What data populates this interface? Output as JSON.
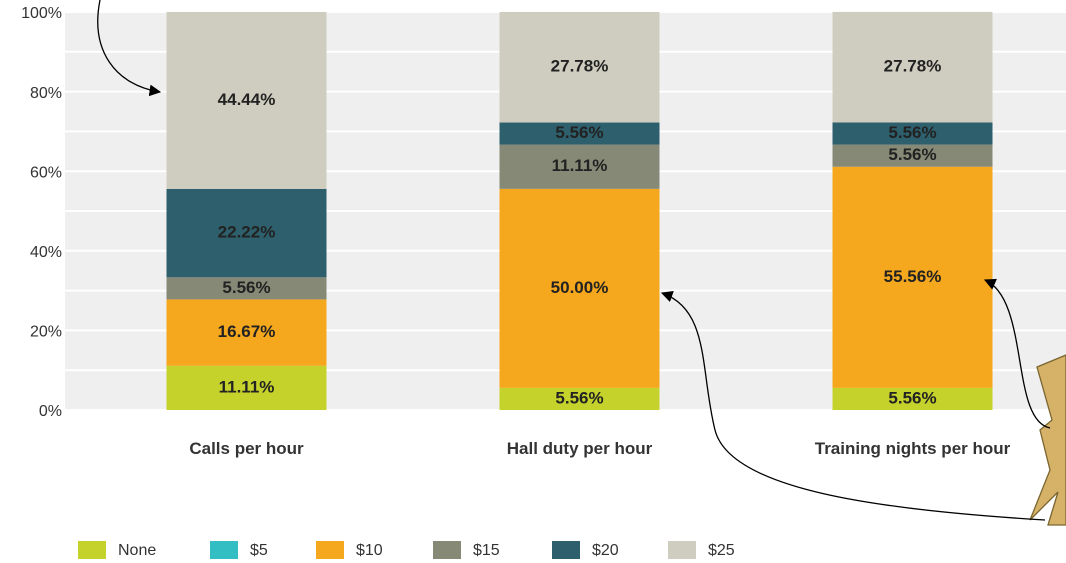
{
  "chart_data": {
    "type": "stacked_bar",
    "categories": [
      "Calls per hour",
      "Hall duty per hour",
      "Training nights per hour"
    ],
    "series": [
      {
        "name": "None",
        "color": "#c5d22c",
        "values": [
          11.11,
          5.56,
          5.56
        ],
        "value_labels": [
          "11.11%",
          "5.56%",
          "5.56%"
        ]
      },
      {
        "name": "$5",
        "color": "#33bec3",
        "values": [
          0,
          0,
          0
        ],
        "value_labels": [
          null,
          null,
          null
        ]
      },
      {
        "name": "$10",
        "color": "#f5a81d",
        "values": [
          16.67,
          50,
          55.56
        ],
        "value_labels": [
          "16.67%",
          "50.00%",
          "55.56%"
        ]
      },
      {
        "name": "$15",
        "color": "#878977",
        "values": [
          5.56,
          11.11,
          5.56
        ],
        "value_labels": [
          "5.56%",
          "11.11%",
          "5.56%"
        ]
      },
      {
        "name": "$20",
        "color": "#2d5f6c",
        "values": [
          22.22,
          5.56,
          5.56
        ],
        "value_labels": [
          "22.22%",
          "5.56%",
          "5.56%"
        ]
      },
      {
        "name": "$25",
        "color": "#cfcdbf",
        "values": [
          44.44,
          27.78,
          27.78
        ],
        "value_labels": [
          "44.44%",
          "27.78%",
          "27.78%"
        ]
      }
    ],
    "ylim": [
      0,
      100
    ],
    "yticks": [
      {
        "value": 0,
        "label": "0%"
      },
      {
        "value": 20,
        "label": "20%"
      },
      {
        "value": 40,
        "label": "40%"
      },
      {
        "value": 60,
        "label": "60%"
      },
      {
        "value": 80,
        "label": "80%"
      },
      {
        "value": 100,
        "label": "100%"
      }
    ],
    "grid": true
  }
}
